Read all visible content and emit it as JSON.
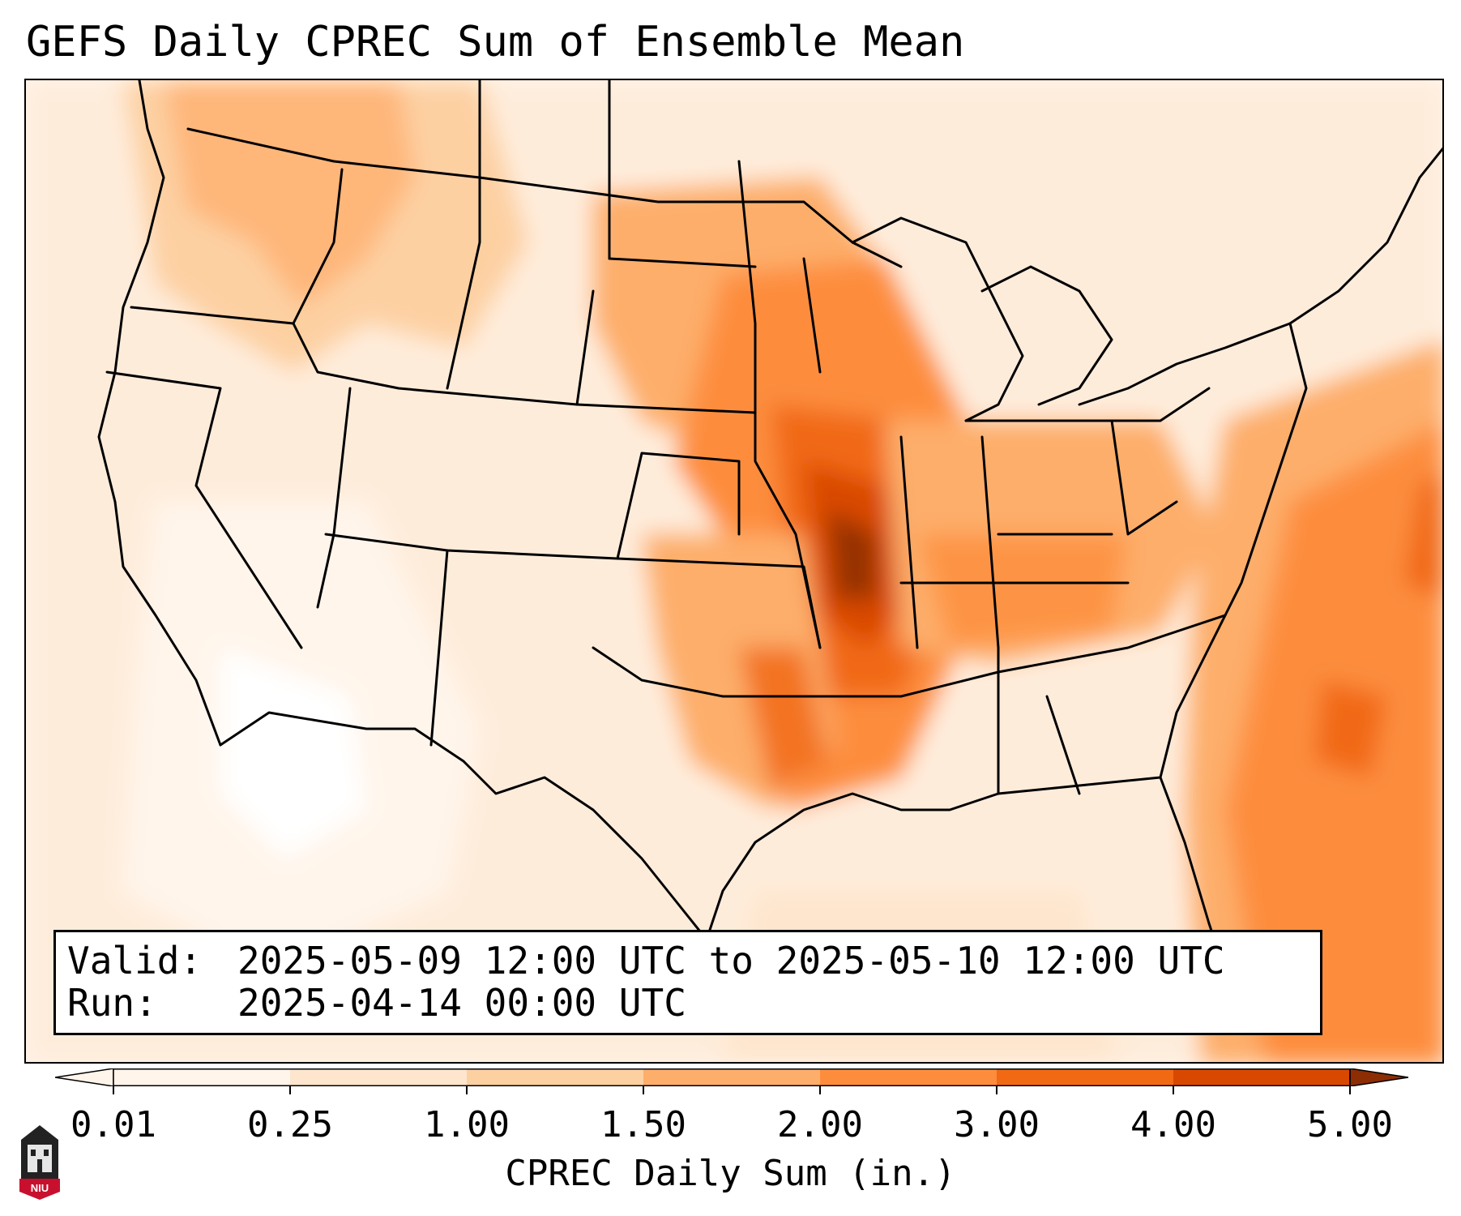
{
  "title": "GEFS Daily CPREC Sum of Ensemble Mean",
  "info": {
    "valid_key": "Valid:",
    "valid_value": "2025-05-09 12:00 UTC to 2025-05-10 12:00 UTC",
    "run_key": "Run:",
    "run_value": "2025-04-14 00:00 UTC"
  },
  "colorbar": {
    "label": "CPREC Daily Sum (in.)",
    "ticks": [
      "0.01",
      "0.25",
      "1.00",
      "1.50",
      "2.00",
      "3.00",
      "4.00",
      "5.00"
    ],
    "colors": [
      "#fff5eb",
      "#fee6ce",
      "#fdd0a2",
      "#fdae6b",
      "#fd8d3c",
      "#f16913",
      "#d94801",
      "#8c2d04"
    ],
    "extend": "both"
  },
  "logo": {
    "text": "NIU",
    "color": "#c8102e"
  }
}
